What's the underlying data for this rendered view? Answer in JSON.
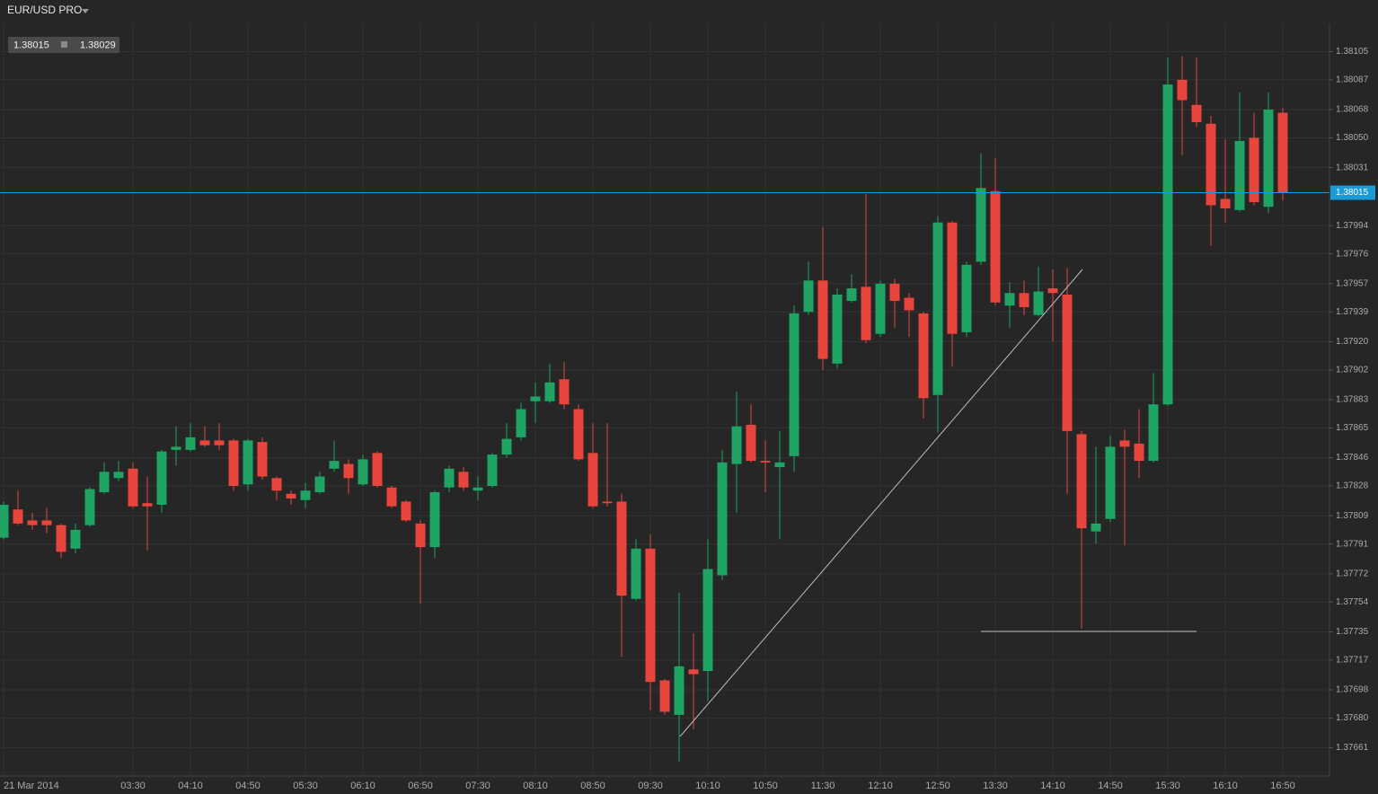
{
  "header": {
    "symbol": "EUR/USD PRO",
    "bid": 1.38015,
    "ask": 1.38029
  },
  "chart_data": {
    "type": "candlestick",
    "categories": [
      "21 Mar 2014",
      null,
      null,
      null,
      null,
      null,
      null,
      null,
      null,
      "03:30",
      null,
      null,
      null,
      "04:10",
      null,
      null,
      null,
      "04:50",
      null,
      null,
      null,
      "05:30",
      null,
      null,
      null,
      "06:10",
      null,
      null,
      null,
      "06:50",
      null,
      null,
      null,
      "07:30",
      null,
      null,
      null,
      "08:10",
      null,
      null,
      null,
      "08:50",
      null,
      null,
      null,
      "09:30",
      null,
      null,
      null,
      "10:10",
      null,
      null,
      null,
      "10:50",
      null,
      null,
      null,
      "11:30",
      null,
      null,
      null,
      "12:10",
      null,
      null,
      null,
      "12:50",
      null,
      null,
      null,
      "13:30",
      null,
      null,
      null,
      "14:10",
      null,
      null,
      null,
      "14:50",
      null,
      null,
      null,
      "15:30",
      null,
      null,
      null,
      "16:10",
      null,
      null,
      null,
      "16:50"
    ],
    "open": [
      1.37795,
      1.37813,
      1.37806,
      1.37806,
      1.37803,
      1.37788,
      1.37803,
      1.37824,
      1.37833,
      1.37839,
      1.37817,
      1.37816,
      1.37851,
      1.37851,
      1.37857,
      1.37857,
      1.37857,
      1.37829,
      1.37856,
      1.37833,
      1.37823,
      1.37819,
      1.37824,
      1.37839,
      1.37842,
      1.37829,
      1.37849,
      1.37827,
      1.37818,
      1.37804,
      1.37789,
      1.37827,
      1.37837,
      1.37825,
      1.37828,
      1.37848,
      1.37859,
      1.37882,
      1.37882,
      1.37896,
      1.37877,
      1.37849,
      1.37818,
      1.37818,
      1.37756,
      1.37788,
      1.37704,
      1.37682,
      1.37711,
      1.3771,
      1.37771,
      1.37842,
      1.37867,
      1.37844,
      1.3784,
      1.37847,
      1.37939,
      1.37959,
      1.37906,
      1.37946,
      1.37955,
      1.37925,
      1.37957,
      1.37948,
      1.37938,
      1.37886,
      1.37996,
      1.37926,
      1.37971,
      1.38016,
      1.37943,
      1.37951,
      1.37937,
      1.37954,
      1.3795,
      1.37861,
      1.37799,
      1.37807,
      1.37857,
      1.37855,
      1.37844,
      1.3788,
      1.38087,
      1.38071,
      1.38059,
      1.38011,
      1.38004,
      1.3805,
      1.38006,
      1.38066
    ],
    "high": [
      1.37818,
      1.37825,
      1.37811,
      1.37814,
      1.37804,
      1.37804,
      1.37827,
      1.37843,
      1.37844,
      1.37843,
      1.37834,
      1.37851,
      1.37866,
      1.37868,
      1.37866,
      1.37868,
      1.37858,
      1.37858,
      1.37859,
      1.37834,
      1.37825,
      1.3783,
      1.37837,
      1.37857,
      1.37845,
      1.37848,
      1.3785,
      1.37828,
      1.37819,
      1.37806,
      1.37825,
      1.37841,
      1.3784,
      1.37834,
      1.37849,
      1.37868,
      1.37881,
      1.37894,
      1.37906,
      1.37907,
      1.3788,
      1.37868,
      1.37868,
      1.37823,
      1.37794,
      1.37797,
      1.37705,
      1.3776,
      1.37734,
      1.37794,
      1.37851,
      1.37888,
      1.3788,
      1.37857,
      1.37863,
      1.37943,
      1.37971,
      1.37993,
      1.37954,
      1.37963,
      1.38014,
      1.37959,
      1.3796,
      1.37951,
      1.37939,
      1.38,
      1.37997,
      1.37971,
      1.3804,
      1.38037,
      1.37958,
      1.37959,
      1.37968,
      1.37966,
      1.37967,
      1.37863,
      1.37853,
      1.3786,
      1.37864,
      1.37877,
      1.379,
      1.38101,
      1.38102,
      1.38101,
      1.38064,
      1.38049,
      1.38079,
      1.38066,
      1.38079,
      1.38069
    ],
    "low": [
      1.37794,
      1.37803,
      1.378,
      1.37798,
      1.37782,
      1.37785,
      1.37802,
      1.37823,
      1.37831,
      1.37814,
      1.37787,
      1.37811,
      1.37841,
      1.3785,
      1.37853,
      1.37851,
      1.37825,
      1.37825,
      1.37832,
      1.37819,
      1.37816,
      1.37814,
      1.37823,
      1.37837,
      1.37823,
      1.37828,
      1.37827,
      1.37814,
      1.37805,
      1.37753,
      1.37782,
      1.37824,
      1.37825,
      1.37819,
      1.37827,
      1.37846,
      1.37857,
      1.37868,
      1.37881,
      1.37877,
      1.37844,
      1.37814,
      1.37815,
      1.37719,
      1.37755,
      1.37685,
      1.37682,
      1.37652,
      1.37673,
      1.37691,
      1.37768,
      1.37811,
      1.37843,
      1.37824,
      1.37794,
      1.37837,
      1.37937,
      1.37902,
      1.37903,
      1.37945,
      1.37919,
      1.37923,
      1.37929,
      1.37923,
      1.37871,
      1.37862,
      1.37904,
      1.37923,
      1.37969,
      1.37943,
      1.37929,
      1.37937,
      1.37936,
      1.3792,
      1.37823,
      1.37737,
      1.37791,
      1.37805,
      1.3779,
      1.37833,
      1.37843,
      1.37879,
      1.38039,
      1.38057,
      1.37981,
      1.37996,
      1.38003,
      1.38007,
      1.38002,
      1.3801
    ],
    "close": [
      1.37816,
      1.37804,
      1.37803,
      1.37803,
      1.37786,
      1.378,
      1.37826,
      1.37837,
      1.37837,
      1.37815,
      1.37815,
      1.3785,
      1.37853,
      1.37859,
      1.37854,
      1.37854,
      1.37828,
      1.37857,
      1.37834,
      1.37825,
      1.3782,
      1.37825,
      1.37834,
      1.37844,
      1.37833,
      1.37845,
      1.37828,
      1.37815,
      1.37806,
      1.37789,
      1.37824,
      1.37839,
      1.37827,
      1.37827,
      1.37848,
      1.37858,
      1.37877,
      1.37885,
      1.37894,
      1.3788,
      1.37845,
      1.37815,
      1.37817,
      1.37758,
      1.37788,
      1.37703,
      1.37684,
      1.37713,
      1.37708,
      1.37775,
      1.37843,
      1.37866,
      1.37844,
      1.37843,
      1.37843,
      1.37938,
      1.37959,
      1.37909,
      1.3795,
      1.37954,
      1.37921,
      1.37957,
      1.37946,
      1.3794,
      1.37884,
      1.37996,
      1.37925,
      1.37969,
      1.38018,
      1.37945,
      1.37951,
      1.37942,
      1.37952,
      1.37951,
      1.37863,
      1.37801,
      1.37804,
      1.37853,
      1.37853,
      1.37844,
      1.3788,
      1.38084,
      1.38074,
      1.3806,
      1.38007,
      1.38005,
      1.38048,
      1.38009,
      1.38068,
      1.38015
    ],
    "up_color": "#1fa463",
    "down_color": "#e8453c",
    "ylim": [
      1.37643,
      1.38123
    ],
    "yticks": [
      1.38105,
      1.38087,
      1.38068,
      {
        "value": 1.3805,
        "label": "1.38050"
      },
      1.38031,
      1.37994,
      1.37976,
      1.37957,
      1.37939,
      {
        "value": 1.3792,
        "label": "1.37920"
      },
      1.37902,
      1.37883,
      1.37865,
      1.37846,
      1.37828,
      1.37809,
      1.37791,
      1.37772,
      1.37754,
      1.37735,
      1.37717,
      1.37698,
      {
        "value": 1.3768,
        "label": "1.37680"
      },
      1.37661
    ],
    "grid": true,
    "current_price": 1.38015,
    "current_price_color": "#1a9ad6"
  }
}
